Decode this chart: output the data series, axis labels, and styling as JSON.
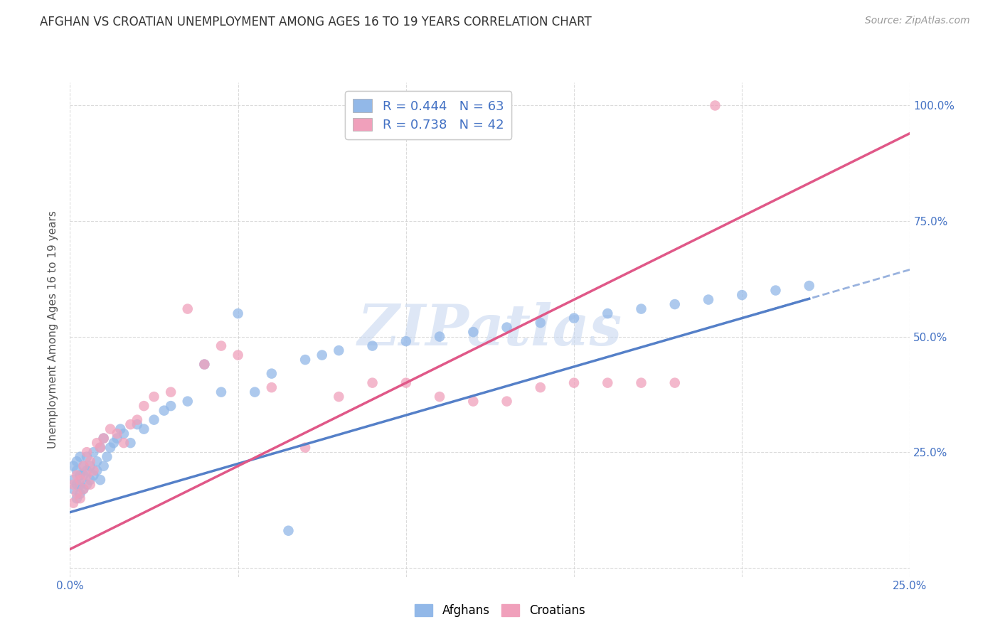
{
  "title": "AFGHAN VS CROATIAN UNEMPLOYMENT AMONG AGES 16 TO 19 YEARS CORRELATION CHART",
  "source": "Source: ZipAtlas.com",
  "ylabel": "Unemployment Among Ages 16 to 19 years",
  "xlim": [
    0.0,
    0.25
  ],
  "ylim": [
    -0.02,
    1.05
  ],
  "afghan_color": "#92b8e8",
  "croatian_color": "#f0a0bb",
  "afghan_line_color": "#5580c8",
  "croatian_line_color": "#e05888",
  "afghan_R": 0.444,
  "afghan_N": 63,
  "croatian_R": 0.738,
  "croatian_N": 42,
  "watermark_text": "ZIPatlas",
  "watermark_color": "#c8d8f0",
  "background_color": "#ffffff",
  "grid_color": "#cccccc",
  "title_color": "#333333",
  "source_color": "#999999",
  "tick_label_color": "#4472c4",
  "ylabel_color": "#555555",
  "afghan_line_intercept": 0.12,
  "afghan_line_slope": 2.1,
  "croatian_line_intercept": 0.04,
  "croatian_line_slope": 3.6,
  "af_x": [
    0.001,
    0.001,
    0.001,
    0.002,
    0.002,
    0.002,
    0.002,
    0.003,
    0.003,
    0.003,
    0.003,
    0.004,
    0.004,
    0.004,
    0.005,
    0.005,
    0.005,
    0.006,
    0.006,
    0.007,
    0.007,
    0.008,
    0.008,
    0.009,
    0.009,
    0.01,
    0.01,
    0.011,
    0.012,
    0.013,
    0.014,
    0.015,
    0.016,
    0.018,
    0.02,
    0.022,
    0.025,
    0.028,
    0.03,
    0.035,
    0.04,
    0.045,
    0.05,
    0.055,
    0.06,
    0.065,
    0.07,
    0.075,
    0.08,
    0.09,
    0.1,
    0.11,
    0.12,
    0.13,
    0.14,
    0.15,
    0.16,
    0.17,
    0.18,
    0.19,
    0.2,
    0.21,
    0.22
  ],
  "af_y": [
    0.17,
    0.19,
    0.22,
    0.15,
    0.18,
    0.21,
    0.23,
    0.16,
    0.18,
    0.2,
    0.24,
    0.17,
    0.2,
    0.22,
    0.18,
    0.21,
    0.24,
    0.19,
    0.22,
    0.2,
    0.25,
    0.21,
    0.23,
    0.19,
    0.26,
    0.22,
    0.28,
    0.24,
    0.26,
    0.27,
    0.28,
    0.3,
    0.29,
    0.27,
    0.31,
    0.3,
    0.32,
    0.34,
    0.35,
    0.36,
    0.44,
    0.38,
    0.55,
    0.38,
    0.42,
    0.08,
    0.45,
    0.46,
    0.47,
    0.48,
    0.49,
    0.5,
    0.51,
    0.52,
    0.53,
    0.54,
    0.55,
    0.56,
    0.57,
    0.58,
    0.59,
    0.6,
    0.61
  ],
  "cr_x": [
    0.001,
    0.001,
    0.002,
    0.002,
    0.003,
    0.003,
    0.004,
    0.004,
    0.005,
    0.005,
    0.006,
    0.006,
    0.007,
    0.008,
    0.009,
    0.01,
    0.012,
    0.014,
    0.016,
    0.018,
    0.02,
    0.022,
    0.025,
    0.03,
    0.035,
    0.04,
    0.045,
    0.05,
    0.06,
    0.07,
    0.08,
    0.09,
    0.1,
    0.11,
    0.12,
    0.13,
    0.14,
    0.15,
    0.16,
    0.17,
    0.18,
    0.192
  ],
  "cr_y": [
    0.14,
    0.18,
    0.16,
    0.2,
    0.15,
    0.19,
    0.17,
    0.22,
    0.2,
    0.25,
    0.18,
    0.23,
    0.21,
    0.27,
    0.26,
    0.28,
    0.3,
    0.29,
    0.27,
    0.31,
    0.32,
    0.35,
    0.37,
    0.38,
    0.56,
    0.44,
    0.48,
    0.46,
    0.39,
    0.26,
    0.37,
    0.4,
    0.4,
    0.37,
    0.36,
    0.36,
    0.39,
    0.4,
    0.4,
    0.4,
    0.4,
    1.0
  ]
}
